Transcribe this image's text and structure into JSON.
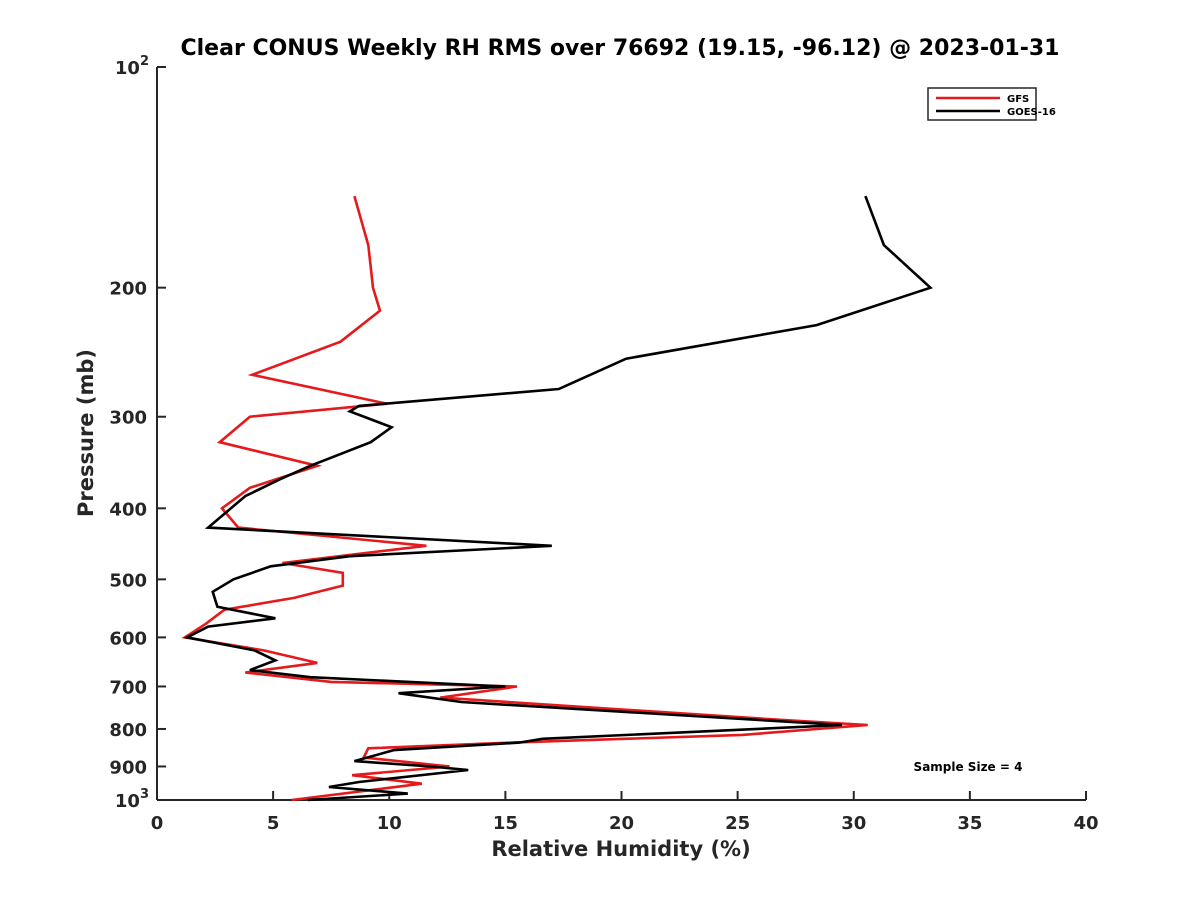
{
  "chart_data": {
    "type": "line",
    "title": "Clear CONUS Weekly RH RMS over 76692 (19.15, -96.12) @ 2023-01-31",
    "xlabel": "Relative Humidity (%)",
    "ylabel": "Pressure (mb)",
    "xlim": [
      0,
      40
    ],
    "ylim": [
      100,
      1000
    ],
    "yscale": "log",
    "y_reversed": true,
    "grid": false,
    "xticks": [
      0,
      5,
      10,
      15,
      20,
      25,
      30,
      35,
      40
    ],
    "xtick_labels": [
      "0",
      "5",
      "10",
      "15",
      "20",
      "25",
      "30",
      "35",
      "40"
    ],
    "yticks": [
      {
        "value": 100,
        "base": "10",
        "exp": "2"
      },
      {
        "value": 200,
        "label": "200"
      },
      {
        "value": 300,
        "label": "300"
      },
      {
        "value": 400,
        "label": "400"
      },
      {
        "value": 500,
        "label": "500"
      },
      {
        "value": 600,
        "label": "600"
      },
      {
        "value": 700,
        "label": "700"
      },
      {
        "value": 800,
        "label": "800"
      },
      {
        "value": 900,
        "label": "900"
      },
      {
        "value": 1000,
        "base": "10",
        "exp": "3"
      }
    ],
    "legend_position": "top-right",
    "annotation": "Sample Size = 4",
    "series": [
      {
        "name": "GFS",
        "color": "#e41a1c",
        "points": [
          [
            8.5,
            150
          ],
          [
            9.1,
            175
          ],
          [
            9.3,
            200
          ],
          [
            9.6,
            215
          ],
          [
            7.9,
            237
          ],
          [
            4.1,
            263
          ],
          [
            9.9,
            288
          ],
          [
            4.0,
            300
          ],
          [
            2.7,
            325
          ],
          [
            6.9,
            350
          ],
          [
            4.0,
            375
          ],
          [
            2.8,
            400
          ],
          [
            3.5,
            425
          ],
          [
            11.6,
            450
          ],
          [
            5.4,
            475
          ],
          [
            8.0,
            490
          ],
          [
            8.0,
            510
          ],
          [
            5.9,
            530
          ],
          [
            2.9,
            550
          ],
          [
            2.1,
            575
          ],
          [
            1.2,
            600
          ],
          [
            4.6,
            625
          ],
          [
            6.9,
            650
          ],
          [
            3.8,
            670
          ],
          [
            7.5,
            690
          ],
          [
            15.5,
            700
          ],
          [
            12.2,
            725
          ],
          [
            26.2,
            775
          ],
          [
            30.6,
            790
          ],
          [
            25.2,
            815
          ],
          [
            15.3,
            835
          ],
          [
            9.1,
            850
          ],
          [
            8.9,
            875
          ],
          [
            12.6,
            900
          ],
          [
            8.4,
            925
          ],
          [
            11.4,
            950
          ],
          [
            5.8,
            1000
          ]
        ]
      },
      {
        "name": "GOES-16",
        "color": "#000000",
        "points": [
          [
            30.5,
            150
          ],
          [
            31.3,
            175
          ],
          [
            33.3,
            200
          ],
          [
            28.4,
            225
          ],
          [
            20.2,
            250
          ],
          [
            17.3,
            275
          ],
          [
            8.7,
            290
          ],
          [
            8.3,
            295
          ],
          [
            10.1,
            310
          ],
          [
            9.2,
            325
          ],
          [
            6.6,
            350
          ],
          [
            5.3,
            365
          ],
          [
            3.8,
            385
          ],
          [
            2.2,
            425
          ],
          [
            17.0,
            450
          ],
          [
            8.3,
            465
          ],
          [
            4.9,
            480
          ],
          [
            3.3,
            500
          ],
          [
            2.4,
            520
          ],
          [
            2.6,
            545
          ],
          [
            5.1,
            565
          ],
          [
            2.2,
            580
          ],
          [
            1.3,
            600
          ],
          [
            4.2,
            625
          ],
          [
            5.1,
            645
          ],
          [
            4.0,
            665
          ],
          [
            6.6,
            680
          ],
          [
            15.0,
            700
          ],
          [
            10.4,
            715
          ],
          [
            13.1,
            735
          ],
          [
            29.5,
            790
          ],
          [
            16.6,
            825
          ],
          [
            15.6,
            835
          ],
          [
            10.2,
            855
          ],
          [
            8.5,
            885
          ],
          [
            11.8,
            900
          ],
          [
            13.4,
            910
          ],
          [
            8.7,
            945
          ],
          [
            7.4,
            960
          ],
          [
            10.8,
            980
          ],
          [
            6.5,
            1000
          ]
        ]
      }
    ]
  }
}
